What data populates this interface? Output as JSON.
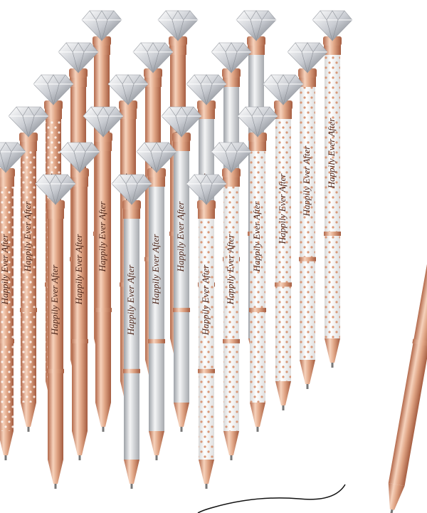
{
  "pen_text": "Happily Ever After"
}
